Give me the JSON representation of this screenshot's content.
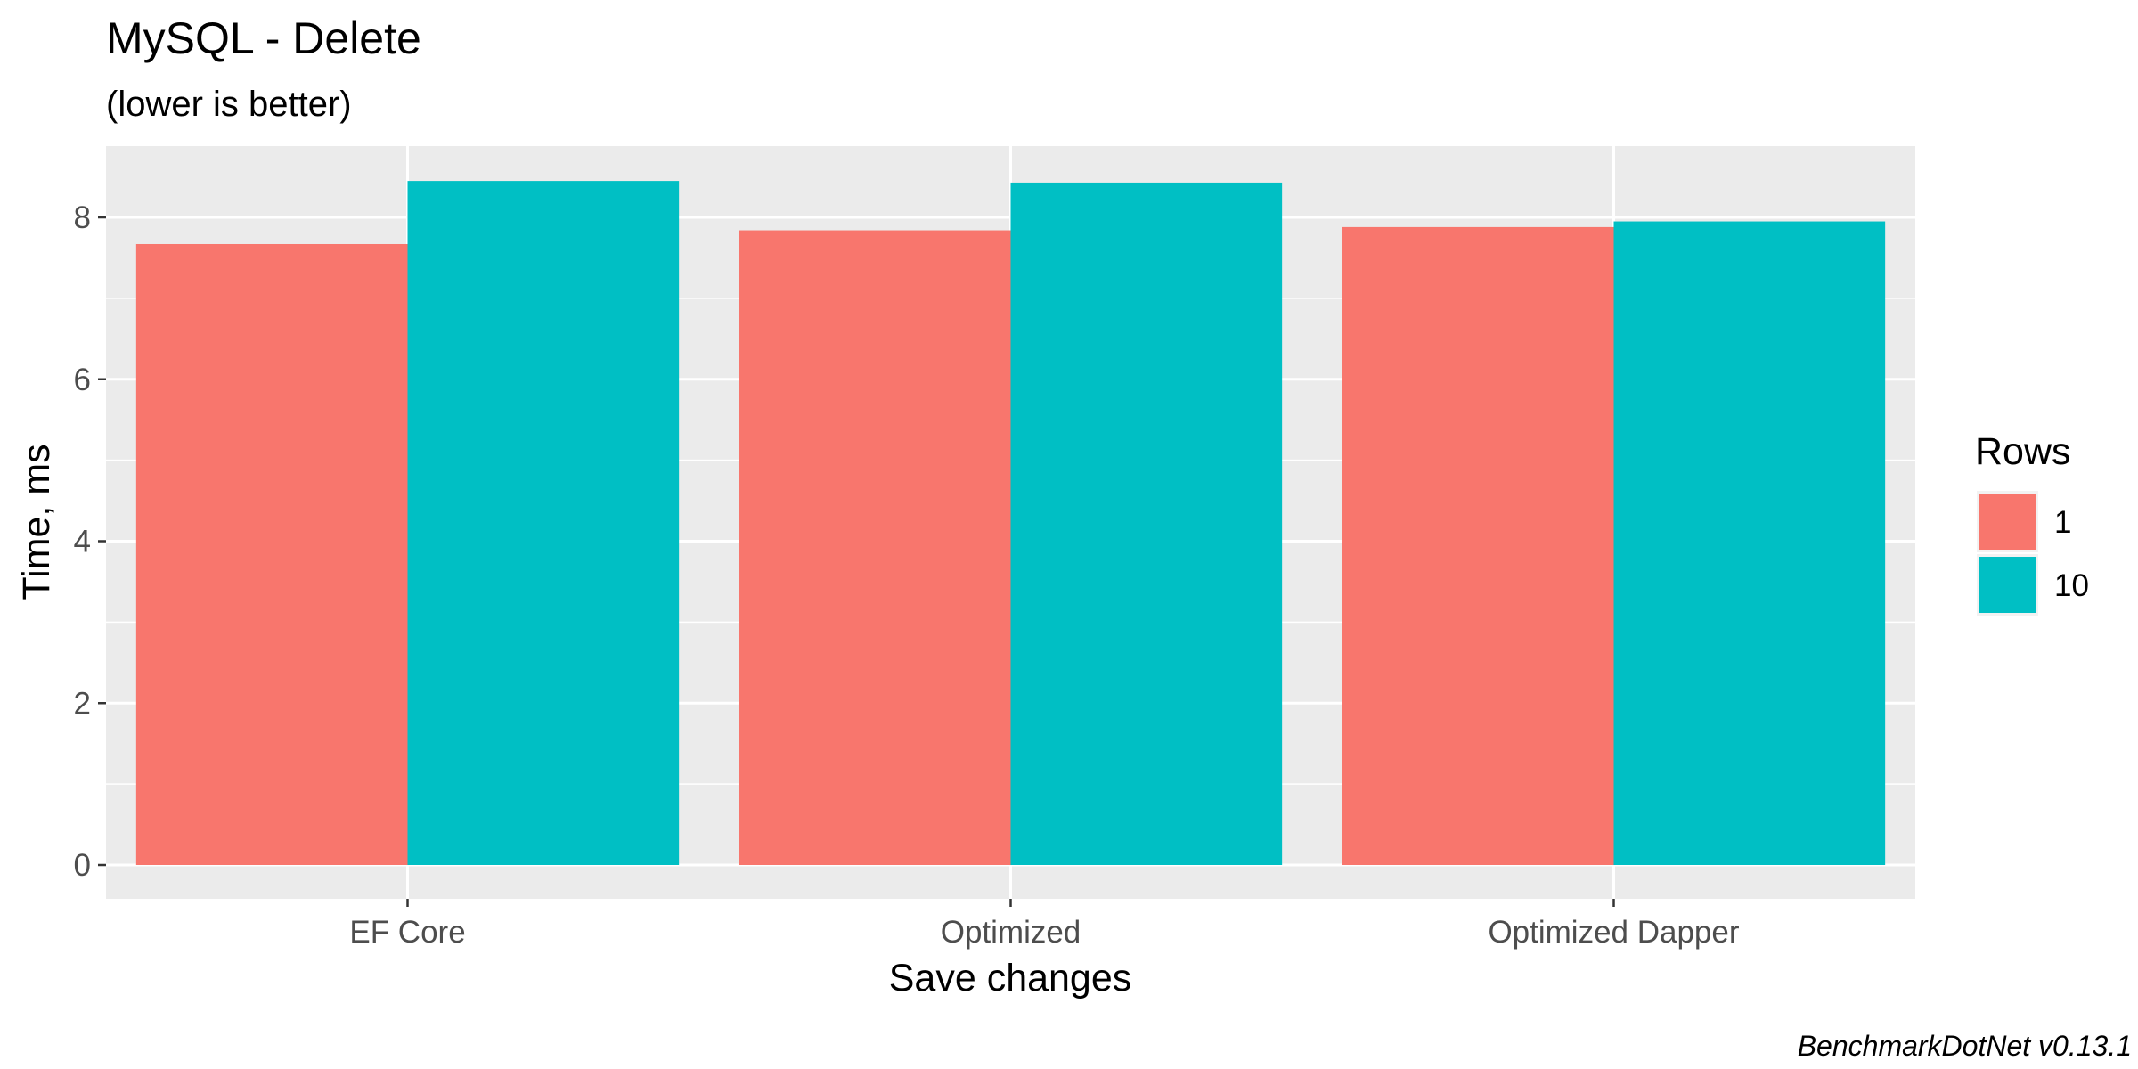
{
  "chart_data": {
    "type": "bar",
    "title": "MySQL - Delete",
    "subtitle": "(lower is better)",
    "xlabel": "Save changes",
    "ylabel": "Time, ms",
    "categories": [
      "EF Core",
      "Optimized",
      "Optimized Dapper"
    ],
    "series": [
      {
        "name": "1",
        "values": [
          7.67,
          7.84,
          7.88
        ],
        "color": "#F8766D"
      },
      {
        "name": "10",
        "values": [
          8.45,
          8.43,
          7.95
        ],
        "color": "#00BFC4"
      }
    ],
    "ylim": [
      0,
      8.85
    ],
    "yticks": [
      0,
      2,
      4,
      6,
      8
    ],
    "ytick_labels": [
      "0",
      "2",
      "4",
      "6",
      "8"
    ],
    "grid": true,
    "panel_color": "#EBEBEB",
    "legend": {
      "title": "Rows",
      "position": "right"
    },
    "caption": "BenchmarkDotNet v0.13.1"
  }
}
